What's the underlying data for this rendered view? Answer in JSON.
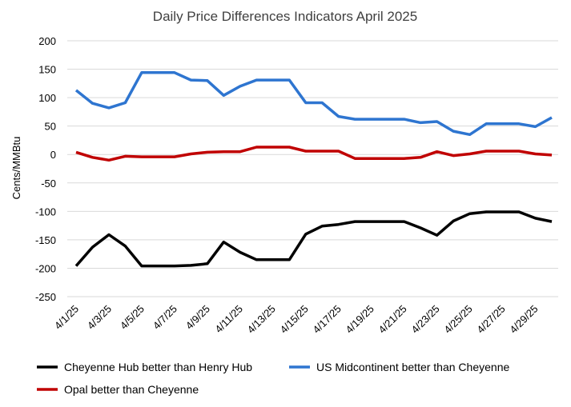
{
  "chart_data": {
    "type": "line",
    "title": "Daily Price Differences Indicators April 2025",
    "xlabel": "",
    "ylabel": "Cents/MMBtu",
    "ylim": [
      -250,
      200
    ],
    "yticks": [
      200,
      150,
      100,
      50,
      0,
      -50,
      -100,
      -150,
      -200,
      -250
    ],
    "grid": true,
    "legend_position": "bottom",
    "x": [
      "4/1/25",
      "4/2/25",
      "4/3/25",
      "4/4/25",
      "4/5/25",
      "4/6/25",
      "4/7/25",
      "4/8/25",
      "4/9/25",
      "4/10/25",
      "4/11/25",
      "4/12/25",
      "4/13/25",
      "4/14/25",
      "4/15/25",
      "4/16/25",
      "4/17/25",
      "4/18/25",
      "4/19/25",
      "4/20/25",
      "4/21/25",
      "4/22/25",
      "4/23/25",
      "4/24/25",
      "4/25/25",
      "4/26/25",
      "4/27/25",
      "4/28/25",
      "4/29/25",
      "4/30/25"
    ],
    "xtick_labels": [
      "4/1/25",
      "4/3/25",
      "4/5/25",
      "4/7/25",
      "4/9/25",
      "4/11/25",
      "4/13/25",
      "4/15/25",
      "4/17/25",
      "4/19/25",
      "4/21/25",
      "4/23/25",
      "4/25/25",
      "4/27/25",
      "4/29/25"
    ],
    "series": [
      {
        "name": "Cheyenne Hub better than Henry Hub",
        "color": "#000000",
        "values": [
          -196,
          -163,
          -141,
          -161,
          -196,
          -196,
          -196,
          -195,
          -192,
          -154,
          -172,
          -185,
          -185,
          -185,
          -140,
          -126,
          -123,
          -118,
          -118,
          -118,
          -118,
          -129,
          -142,
          -117,
          -104,
          -101,
          -101,
          -101,
          -112,
          -118
        ]
      },
      {
        "name": "US Midcontinent better than Cheyenne",
        "color": "#2e75d0",
        "values": [
          113,
          90,
          82,
          91,
          144,
          144,
          144,
          131,
          130,
          104,
          120,
          131,
          131,
          131,
          91,
          91,
          67,
          62,
          62,
          62,
          62,
          56,
          58,
          41,
          35,
          54,
          54,
          54,
          49,
          65
        ]
      },
      {
        "name": "Opal better than Cheyenne",
        "color": "#c00000",
        "values": [
          4,
          -5,
          -10,
          -3,
          -4,
          -4,
          -4,
          1,
          4,
          5,
          5,
          13,
          13,
          13,
          6,
          6,
          6,
          -7,
          -7,
          -7,
          -7,
          -5,
          5,
          -2,
          1,
          6,
          6,
          6,
          1,
          -1
        ]
      }
    ]
  }
}
